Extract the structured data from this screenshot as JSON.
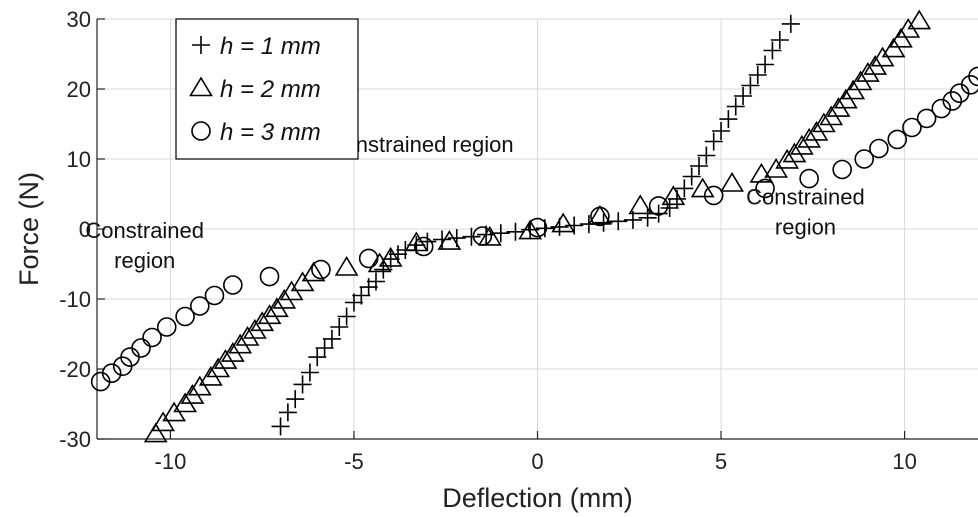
{
  "chart_data": {
    "type": "scatter",
    "title": "",
    "xlabel": "Deflection (mm)",
    "ylabel": "Force (N)",
    "xlim": [
      -12,
      12
    ],
    "ylim": [
      -30,
      30
    ],
    "xticks": [
      -10,
      -5,
      0,
      5,
      10
    ],
    "yticks": [
      -30,
      -20,
      -10,
      0,
      10,
      20,
      30
    ],
    "grid": true,
    "legend": {
      "position": "top-left"
    },
    "annotations": [
      {
        "id": "unconstrained",
        "lines": [
          "Unconstrained region"
        ],
        "x": -3.5,
        "y": 11
      },
      {
        "id": "constrained-right",
        "lines": [
          "Constrained",
          "region"
        ],
        "x": 7.3,
        "y": 3.5
      },
      {
        "id": "constrained-left",
        "lines": [
          "Constrained",
          "region"
        ],
        "x": -10.7,
        "y": -1.3
      }
    ],
    "series": [
      {
        "name": "h = 1 mm",
        "marker": "plus",
        "points": [
          [
            -7.0,
            -28.2
          ],
          [
            -6.8,
            -26.2
          ],
          [
            -6.6,
            -24.3
          ],
          [
            -6.4,
            -22.2
          ],
          [
            -6.2,
            -20.5
          ],
          [
            -6.0,
            -18.3
          ],
          [
            -5.8,
            -17.0
          ],
          [
            -5.6,
            -15.7
          ],
          [
            -5.4,
            -14.0
          ],
          [
            -5.2,
            -12.5
          ],
          [
            -5.0,
            -10.5
          ],
          [
            -4.8,
            -9.5
          ],
          [
            -4.6,
            -8.3
          ],
          [
            -4.4,
            -7.5
          ],
          [
            -4.2,
            -5.8
          ],
          [
            -4.0,
            -4.3
          ],
          [
            -3.8,
            -3.6
          ],
          [
            -3.6,
            -3.0
          ],
          [
            -3.3,
            -2.3
          ],
          [
            -3.0,
            -1.8
          ],
          [
            -2.6,
            -1.5
          ],
          [
            -2.2,
            -1.3
          ],
          [
            -1.8,
            -1.1
          ],
          [
            -1.4,
            -0.8
          ],
          [
            -1.0,
            -0.6
          ],
          [
            -0.6,
            -0.4
          ],
          [
            -0.2,
            -0.1
          ],
          [
            0.2,
            0.1
          ],
          [
            0.6,
            0.3
          ],
          [
            1.0,
            0.5
          ],
          [
            1.4,
            0.7
          ],
          [
            1.8,
            0.9
          ],
          [
            2.2,
            1.1
          ],
          [
            2.6,
            1.3
          ],
          [
            3.0,
            1.6
          ],
          [
            3.3,
            2.2
          ],
          [
            3.6,
            3.0
          ],
          [
            3.8,
            4.3
          ],
          [
            4.0,
            5.8
          ],
          [
            4.2,
            7.5
          ],
          [
            4.4,
            9.0
          ],
          [
            4.6,
            10.5
          ],
          [
            4.8,
            12.5
          ],
          [
            5.0,
            14.0
          ],
          [
            5.2,
            15.7
          ],
          [
            5.4,
            17.5
          ],
          [
            5.6,
            19.0
          ],
          [
            5.8,
            20.5
          ],
          [
            6.0,
            22.0
          ],
          [
            6.2,
            23.5
          ],
          [
            6.4,
            25.5
          ],
          [
            6.6,
            27.0
          ],
          [
            6.9,
            29.3
          ]
        ]
      },
      {
        "name": "h = 2 mm",
        "marker": "triangle",
        "points": [
          [
            -10.4,
            -29.3
          ],
          [
            -10.2,
            -27.7
          ],
          [
            -9.9,
            -26.3
          ],
          [
            -9.6,
            -25.0
          ],
          [
            -9.4,
            -23.8
          ],
          [
            -9.2,
            -22.6
          ],
          [
            -8.9,
            -21.2
          ],
          [
            -8.7,
            -20.0
          ],
          [
            -8.5,
            -18.8
          ],
          [
            -8.3,
            -17.8
          ],
          [
            -8.1,
            -16.6
          ],
          [
            -7.9,
            -15.5
          ],
          [
            -7.7,
            -14.5
          ],
          [
            -7.5,
            -13.4
          ],
          [
            -7.3,
            -12.4
          ],
          [
            -7.1,
            -11.4
          ],
          [
            -6.9,
            -10.2
          ],
          [
            -6.7,
            -9.0
          ],
          [
            -6.4,
            -7.7
          ],
          [
            -6.1,
            -6.3
          ],
          [
            -5.2,
            -5.5
          ],
          [
            -4.3,
            -5.0
          ],
          [
            -4.0,
            -4.2
          ],
          [
            -3.3,
            -2.0
          ],
          [
            -2.4,
            -1.8
          ],
          [
            -1.3,
            -1.2
          ],
          [
            -0.2,
            -0.3
          ],
          [
            0.7,
            0.7
          ],
          [
            1.7,
            1.8
          ],
          [
            2.8,
            3.3
          ],
          [
            3.7,
            4.6
          ],
          [
            4.5,
            5.7
          ],
          [
            5.3,
            6.5
          ],
          [
            6.1,
            7.8
          ],
          [
            6.5,
            8.5
          ],
          [
            6.8,
            9.8
          ],
          [
            7.0,
            10.7
          ],
          [
            7.2,
            11.8
          ],
          [
            7.4,
            12.8
          ],
          [
            7.6,
            13.8
          ],
          [
            7.8,
            15.0
          ],
          [
            8.0,
            16.0
          ],
          [
            8.2,
            17.2
          ],
          [
            8.4,
            18.4
          ],
          [
            8.6,
            19.7
          ],
          [
            8.8,
            21.0
          ],
          [
            9.0,
            22.2
          ],
          [
            9.2,
            23.2
          ],
          [
            9.4,
            24.4
          ],
          [
            9.7,
            25.7
          ],
          [
            9.9,
            27.1
          ],
          [
            10.1,
            28.5
          ],
          [
            10.4,
            29.7
          ]
        ]
      },
      {
        "name": "h = 3 mm",
        "marker": "circle",
        "points": [
          [
            -11.9,
            -21.8
          ],
          [
            -11.6,
            -20.6
          ],
          [
            -11.3,
            -19.6
          ],
          [
            -11.1,
            -18.3
          ],
          [
            -10.8,
            -17.0
          ],
          [
            -10.5,
            -15.5
          ],
          [
            -10.1,
            -14.0
          ],
          [
            -9.6,
            -12.5
          ],
          [
            -9.2,
            -11.0
          ],
          [
            -8.8,
            -9.5
          ],
          [
            -8.3,
            -8.0
          ],
          [
            -7.3,
            -6.8
          ],
          [
            -5.9,
            -5.8
          ],
          [
            -4.6,
            -4.2
          ],
          [
            -3.1,
            -2.5
          ],
          [
            -1.5,
            -1.0
          ],
          [
            0.0,
            0.2
          ],
          [
            1.7,
            1.8
          ],
          [
            3.3,
            3.3
          ],
          [
            4.8,
            4.8
          ],
          [
            6.2,
            5.8
          ],
          [
            7.4,
            7.2
          ],
          [
            8.3,
            8.5
          ],
          [
            8.9,
            10.0
          ],
          [
            9.3,
            11.5
          ],
          [
            9.8,
            12.8
          ],
          [
            10.2,
            14.5
          ],
          [
            10.6,
            15.8
          ],
          [
            11.0,
            17.2
          ],
          [
            11.3,
            18.3
          ],
          [
            11.5,
            19.4
          ],
          [
            11.8,
            20.6
          ],
          [
            12.0,
            21.8
          ]
        ]
      }
    ]
  }
}
